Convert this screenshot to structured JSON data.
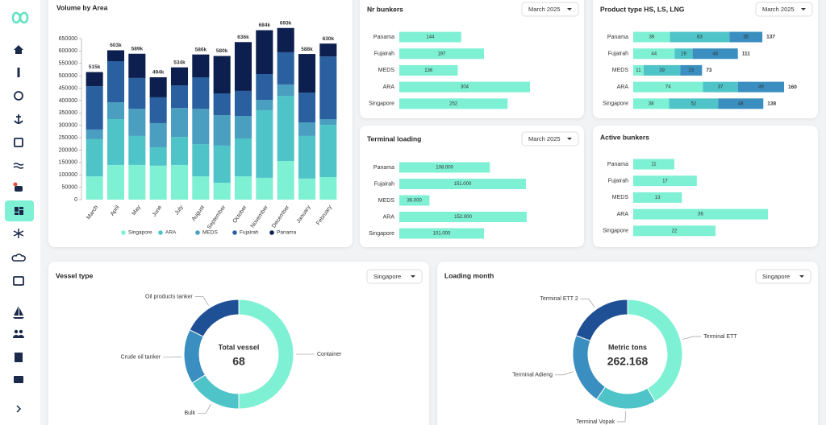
{
  "chart_data": [
    {
      "type": "bar",
      "stacked": true,
      "title": "Volume by Area",
      "categories": [
        "March",
        "April",
        "May",
        "June",
        "July",
        "August",
        "September",
        "October",
        "November",
        "December",
        "January",
        "February"
      ],
      "series": [
        {
          "name": "Singapore",
          "color": "#7ef0d4",
          "values": [
            94000,
            140000,
            140000,
            137000,
            140000,
            94000,
            68000,
            94000,
            88000,
            156000,
            85000,
            91000
          ]
        },
        {
          "name": "ARA",
          "color": "#4fc4c8",
          "values": [
            150000,
            185000,
            117000,
            74000,
            113000,
            130000,
            150000,
            153000,
            273000,
            263000,
            172000,
            211000
          ]
        },
        {
          "name": "MEDS",
          "color": "#4a9ec0",
          "values": [
            39000,
            68000,
            110000,
            98000,
            117000,
            143000,
            123000,
            91000,
            42000,
            46000,
            55000,
            23000
          ]
        },
        {
          "name": "Fujairah",
          "color": "#2a5fa0",
          "values": [
            175000,
            166000,
            124000,
            104000,
            91000,
            127000,
            88000,
            101000,
            104000,
            130000,
            120000,
            253000
          ]
        },
        {
          "name": "Panama",
          "color": "#0d1f4f",
          "values": [
            57000,
            44000,
            98000,
            81000,
            73000,
            92000,
            151000,
            197000,
            177000,
            98000,
            156000,
            52000
          ]
        }
      ],
      "total_labels": [
        "515k",
        "603k",
        "589k",
        "494k",
        "534k",
        "586k",
        "580k",
        "636k",
        "684k",
        "693k",
        "588k",
        "630k"
      ],
      "ylim": [
        0,
        700000
      ],
      "yticks": [
        0,
        50000,
        100000,
        150000,
        200000,
        250000,
        300000,
        350000,
        400000,
        450000,
        500000,
        550000,
        600000,
        650000
      ],
      "legend": "bottom"
    },
    {
      "type": "bar",
      "orientation": "horizontal",
      "title": "Nr bunkers",
      "filter": "March 2025",
      "categories": [
        "Panama",
        "Fujairah",
        "MEDS",
        "ARA",
        "Singapore"
      ],
      "values": [
        144,
        197,
        136,
        304,
        252
      ],
      "color": "#7ef0d4"
    },
    {
      "type": "bar",
      "orientation": "horizontal",
      "stacked": true,
      "title": "Product type HS, LS, LNG",
      "filter": "March 2025",
      "categories": [
        "Panama",
        "Fujairah",
        "MEDS",
        "ARA",
        "Singapore"
      ],
      "series": [
        {
          "color": "#7ef0d4",
          "values": [
            39,
            44,
            11,
            74,
            38
          ]
        },
        {
          "color": "#4fc4c8",
          "values": [
            63,
            19,
            39,
            37,
            52
          ]
        },
        {
          "color": "#3a8fc0",
          "values": [
            35,
            48,
            23,
            49,
            48
          ]
        }
      ],
      "totals": [
        137,
        111,
        73,
        160,
        138
      ]
    },
    {
      "type": "bar",
      "orientation": "horizontal",
      "title": "Terminal loading",
      "filter": "March 2025",
      "categories": [
        "Panama",
        "Fujairah",
        "MEDS",
        "ARA",
        "Singapore"
      ],
      "values": [
        108000,
        151000,
        36000,
        152000,
        101000
      ],
      "value_labels": [
        "108.000",
        "151.000",
        "36.000",
        "152.000",
        "101.000"
      ],
      "color": "#7ef0d4"
    },
    {
      "type": "bar",
      "orientation": "horizontal",
      "title": "Active bunkers",
      "categories": [
        "Panama",
        "Fujairah",
        "MEDS",
        "ARA",
        "Singapore"
      ],
      "values": [
        11,
        17,
        13,
        36,
        22
      ],
      "color": "#7ef0d4"
    },
    {
      "type": "pie",
      "donut": true,
      "title": "Vessel type",
      "filter": "Singapore",
      "categories": [
        "Container",
        "Bulk",
        "Crude oil tanker",
        "Oil products tanker"
      ],
      "values": [
        34,
        11,
        11,
        12
      ],
      "colors": [
        "#7ef0d4",
        "#4fc4c8",
        "#3a8fc0",
        "#1f4f94"
      ],
      "center_title": "Total vessel",
      "center_value": 68
    },
    {
      "type": "pie",
      "donut": true,
      "title": "Loading month",
      "filter": "Singapore",
      "categories": [
        "Terminal ETT",
        "Terminal Vopak",
        "Terminal Adieng",
        "Terminal ETT 2"
      ],
      "values": [
        109000,
        47000,
        55000,
        51000
      ],
      "colors": [
        "#7ef0d4",
        "#4fc4c8",
        "#3a8fc0",
        "#1f4f94"
      ],
      "center_title": "Metric tons",
      "center_value_label": "262.168"
    }
  ]
}
